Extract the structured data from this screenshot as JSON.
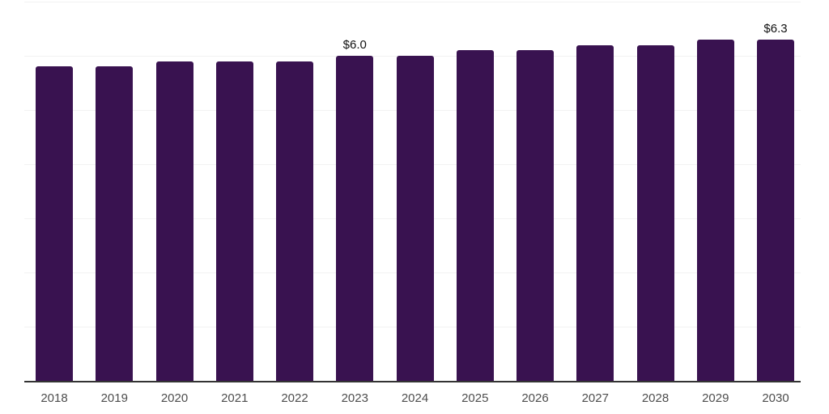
{
  "chart_data": {
    "type": "bar",
    "title": "",
    "xlabel": "",
    "ylabel": "",
    "categories": [
      "2018",
      "2019",
      "2020",
      "2021",
      "2022",
      "2023",
      "2024",
      "2025",
      "2026",
      "2027",
      "2028",
      "2029",
      "2030"
    ],
    "values": [
      5.8,
      5.8,
      5.9,
      5.9,
      5.9,
      6.0,
      6.0,
      6.1,
      6.1,
      6.2,
      6.2,
      6.3,
      6.3
    ],
    "bar_labels": {
      "2023": "$6.0",
      "2030": "$6.3"
    },
    "ylim": [
      0,
      7
    ],
    "gridline_step": 1,
    "grid": true,
    "legend": false,
    "colors": {
      "bar": "#391250",
      "gridline": "#F2F2F2",
      "axis": "#333333",
      "tick_label": "#4D4D4D",
      "value_label": "#111111"
    }
  }
}
